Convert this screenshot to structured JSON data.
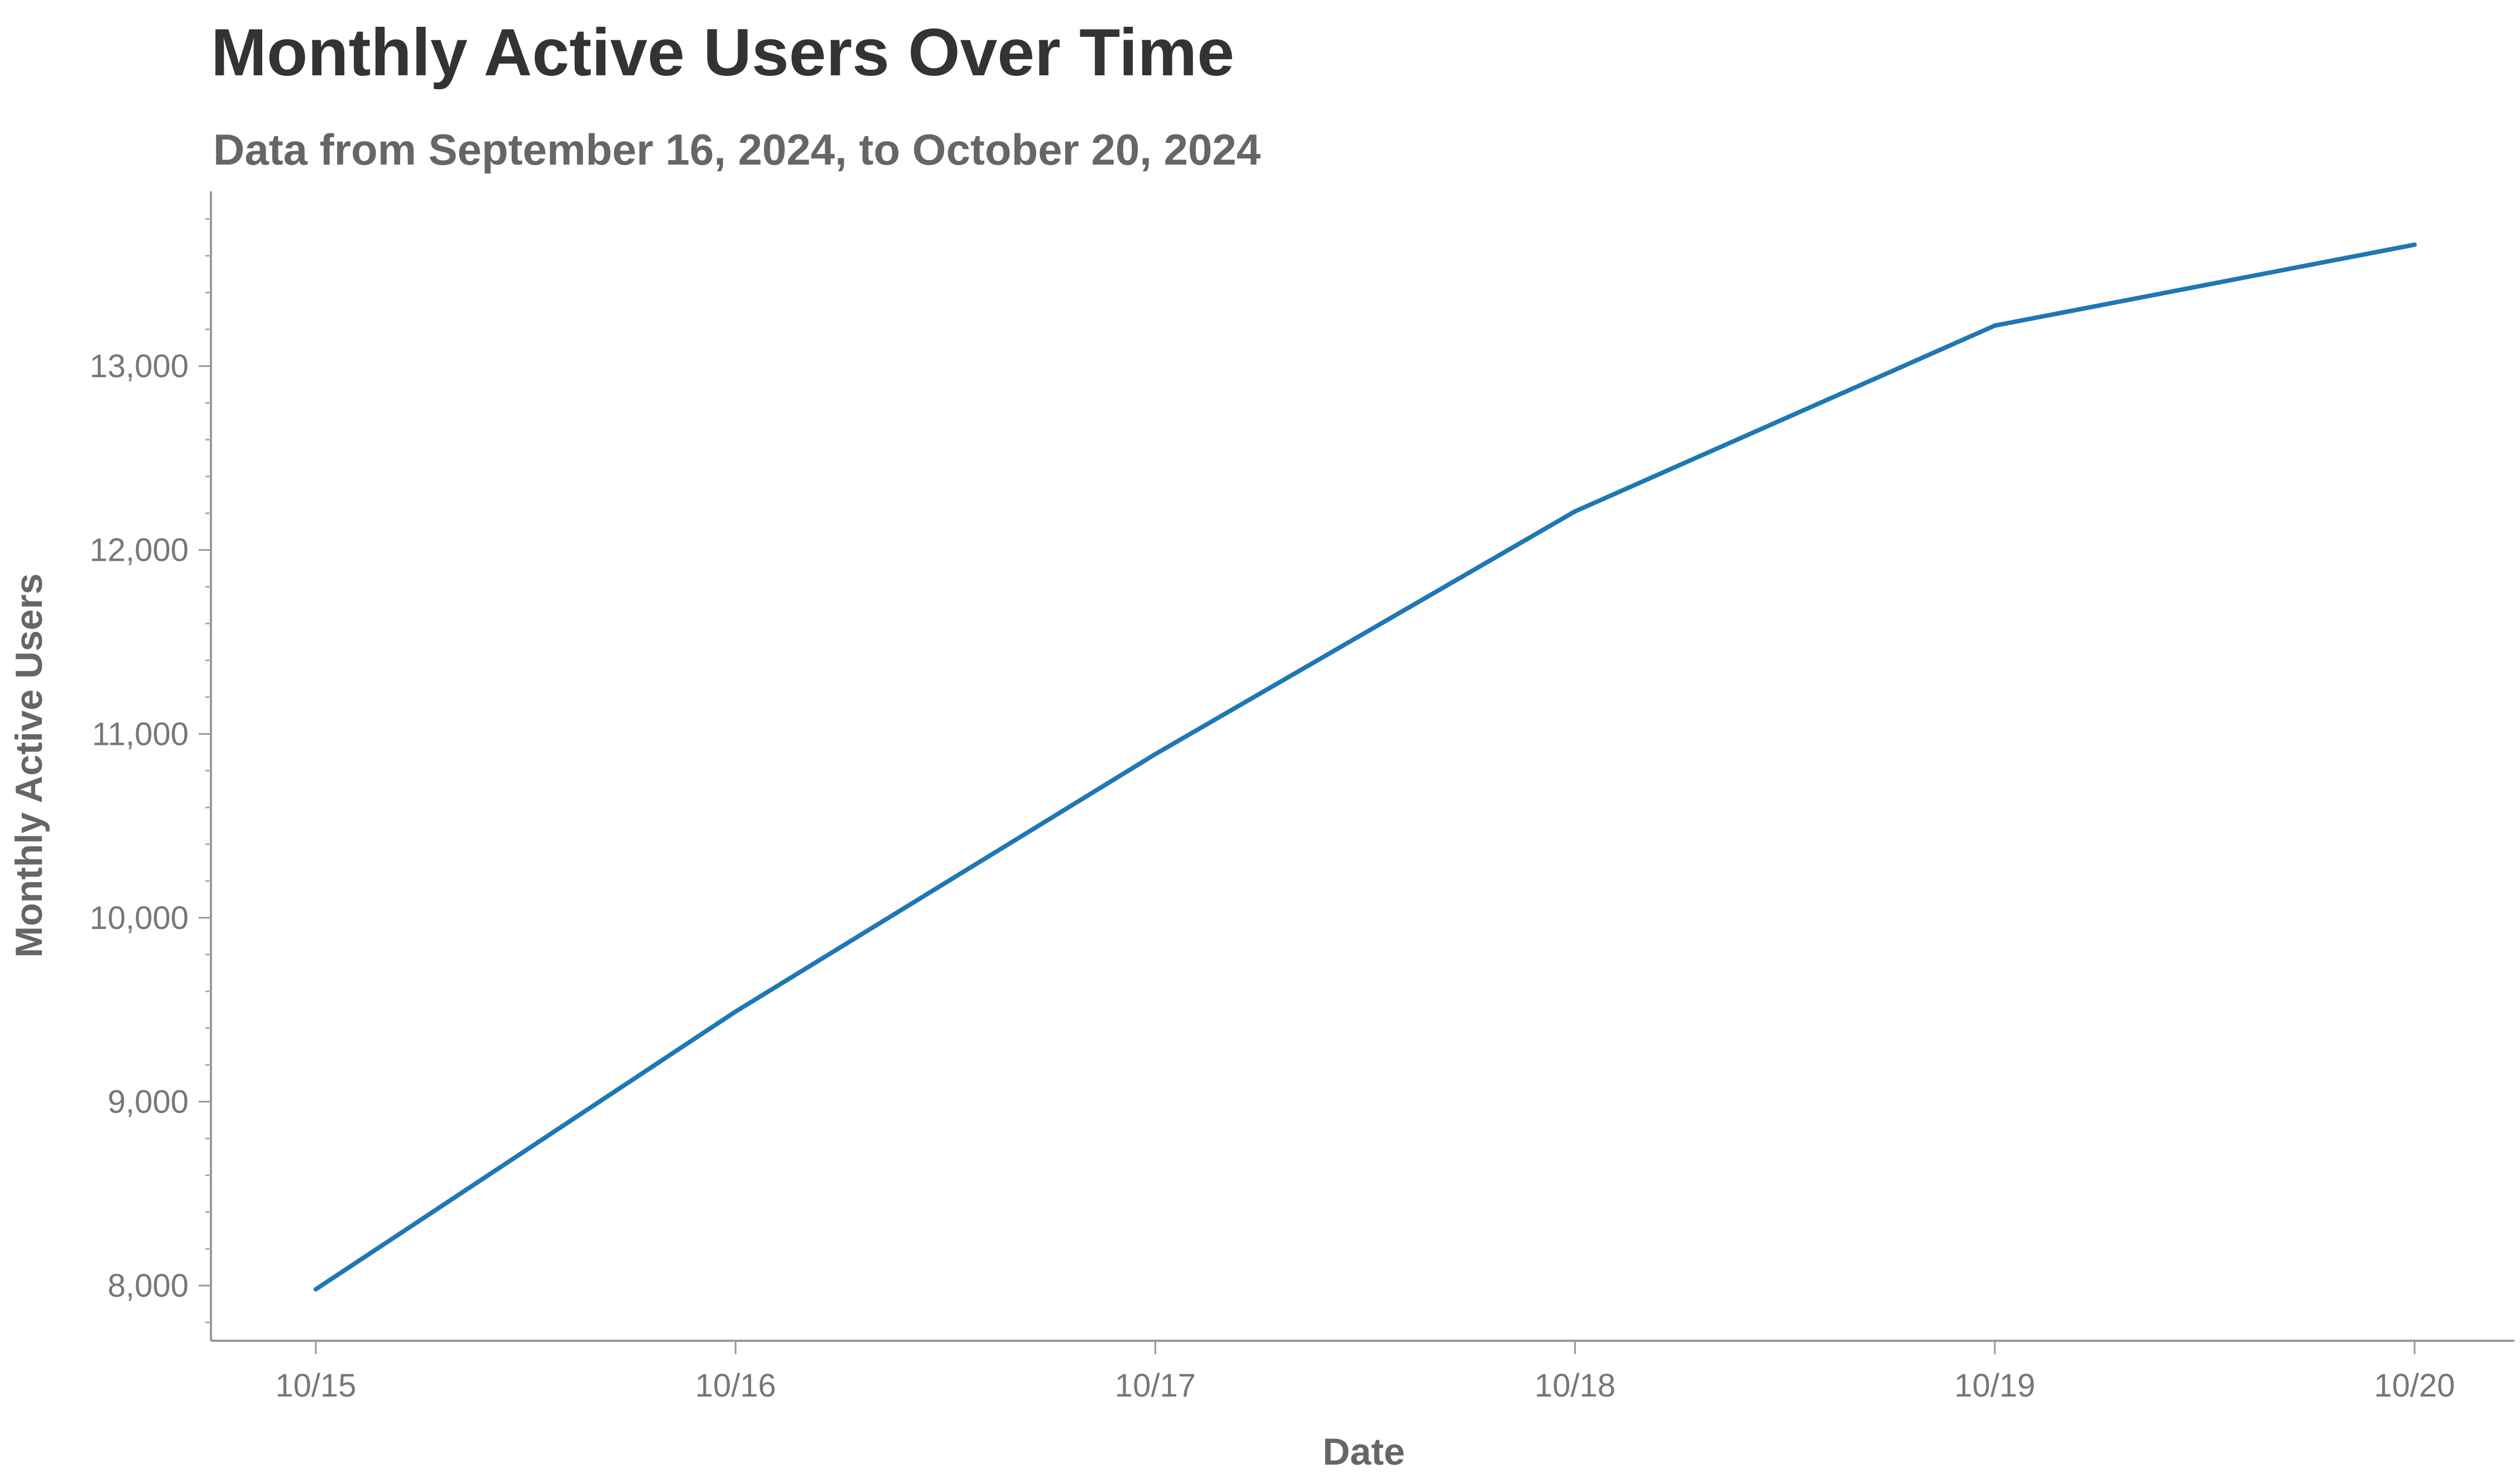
{
  "chart_data": {
    "type": "line",
    "title": "Monthly Active Users Over Time",
    "subtitle": "Data from September 16, 2024, to October 20, 2024",
    "xlabel": "Date",
    "ylabel": "Monthly Active Users",
    "x": [
      "10/15",
      "10/16",
      "10/17",
      "10/18",
      "10/19",
      "10/20"
    ],
    "series": [
      {
        "values": [
          7980,
          9490,
          10890,
          12210,
          13220,
          13660
        ],
        "color": "#1f77b4"
      }
    ],
    "yticks": [
      8000,
      9000,
      10000,
      11000,
      12000,
      13000
    ],
    "ytick_labels": [
      "8,000",
      "9,000",
      "10,000",
      "11,000",
      "12,000",
      "13,000"
    ],
    "ylim": [
      7700,
      13950
    ],
    "grid": false,
    "legend": "none"
  }
}
